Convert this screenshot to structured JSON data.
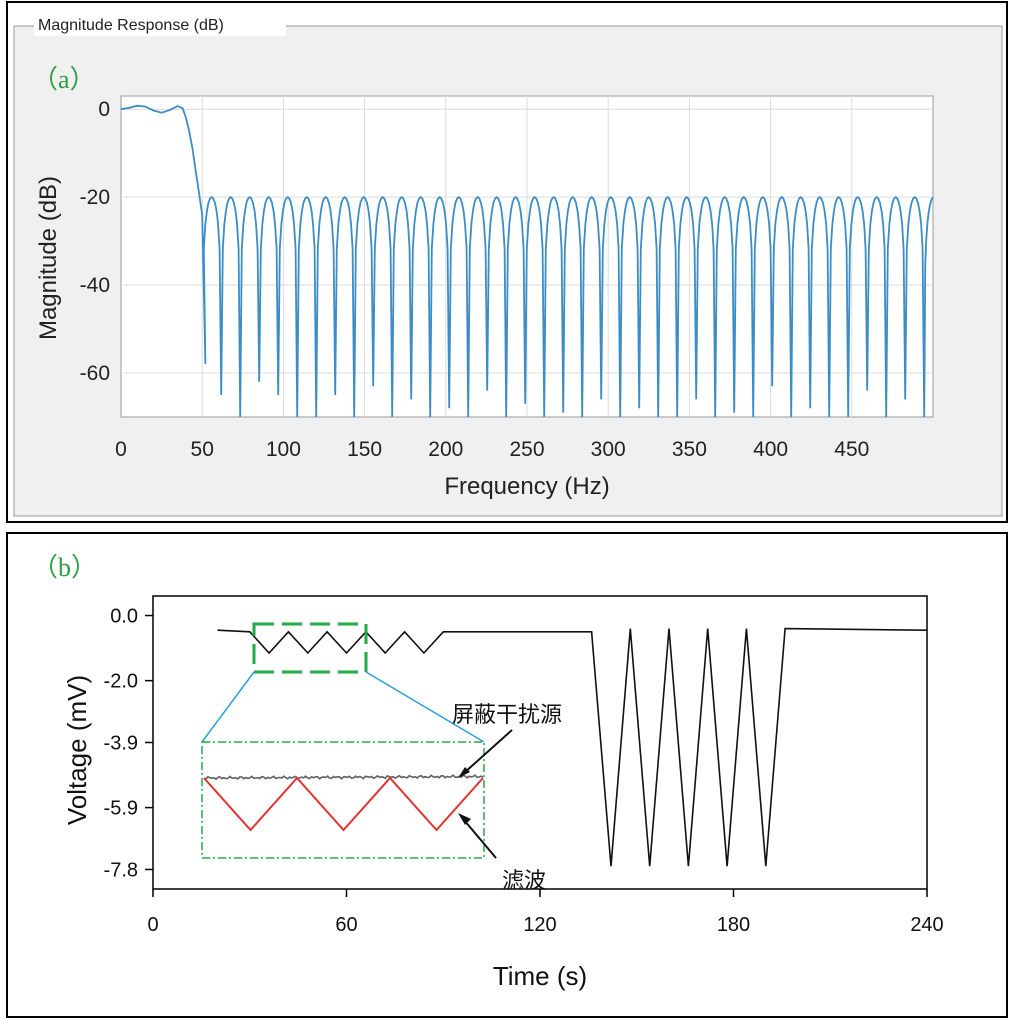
{
  "panel_a": {
    "group_label": "Magnitude Response (dB)",
    "tag": "（a）",
    "tag_color": "#2e9e3e",
    "frame_bg": "#f0f0f0",
    "series_color": "#3c8dc5"
  },
  "panel_b": {
    "tag": "（b）",
    "tag_color": "#2e9e3e",
    "inset_label_top": "屏蔽干扰源",
    "inset_label_bottom": "滤波",
    "zoom_box_color": "#22aa44",
    "connector_color": "#2aa0d8",
    "filtered_color": "#e53030",
    "shield_color": "#606060"
  },
  "chart_data": [
    {
      "type": "line",
      "xlabel": "Frequency (Hz)",
      "ylabel": "Magnitude (dB)",
      "xlim": [
        0,
        500
      ],
      "ylim": [
        -70,
        3
      ],
      "xticks": [
        0,
        50,
        100,
        150,
        200,
        250,
        300,
        350,
        400,
        450
      ],
      "yticks": [
        0,
        -20,
        -40,
        -60
      ],
      "grid": true,
      "passband_edge_hz": 38,
      "stopband_start_hz": 50,
      "sidelobe_peak_db": -20,
      "notch_spacing_hz": 11.7,
      "series": [
        {
          "x": [
            0,
            5,
            10,
            15,
            20,
            25,
            30,
            35,
            38,
            40,
            42,
            44,
            46,
            48,
            50,
            52
          ],
          "y": [
            0,
            0.3,
            0.8,
            0.6,
            -0.3,
            -0.8,
            -0.2,
            0.7,
            0.2,
            -2,
            -5,
            -9,
            -14,
            -19,
            -24,
            -58
          ]
        }
      ]
    },
    {
      "type": "line",
      "xlabel": "Time (s)",
      "ylabel": "Voltage (mV)",
      "xlim": [
        0,
        240
      ],
      "ylim": [
        -8.4,
        0.6
      ],
      "xticks": [
        0,
        60,
        120,
        180,
        240
      ],
      "yticks": [
        "0.0",
        "-2.0",
        "-3.9",
        "-5.9",
        "-7.8"
      ],
      "grid": false,
      "series": [
        {
          "x": [
            20,
            30,
            36,
            42,
            48,
            54,
            60,
            66,
            72,
            78,
            84,
            90,
            96,
            133,
            136,
            142,
            148,
            154,
            160,
            166,
            172,
            178,
            184,
            190,
            196,
            240
          ],
          "y": [
            -0.45,
            -0.5,
            -1.15,
            -0.5,
            -1.15,
            -0.5,
            -1.15,
            -0.5,
            -1.15,
            -0.5,
            -1.15,
            -0.5,
            -0.5,
            -0.5,
            -0.5,
            -7.7,
            -0.4,
            -7.7,
            -0.4,
            -7.7,
            -0.4,
            -7.7,
            -0.4,
            -7.7,
            -0.4,
            -0.45
          ]
        }
      ]
    }
  ]
}
